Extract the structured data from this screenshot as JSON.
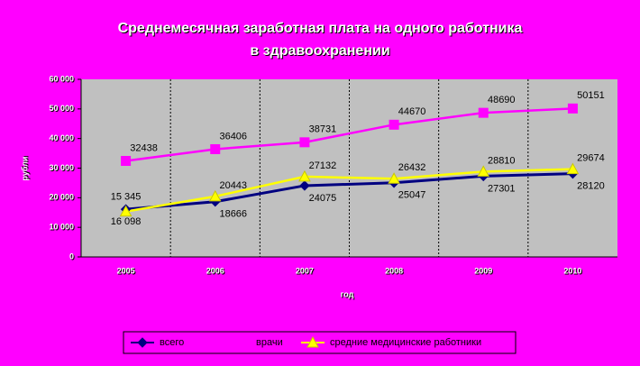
{
  "chart_data": {
    "type": "line",
    "title": [
      "Среднемесячная заработная плата на одного работника",
      "в здравоохранении"
    ],
    "x_label": "год",
    "y_label": "рубли",
    "categories": [
      "2005",
      "2006",
      "2007",
      "2008",
      "2009",
      "2010"
    ],
    "ylim": [
      0,
      60000
    ],
    "yticks": [
      0,
      {
        "value": 10000,
        "label": "10 000"
      },
      {
        "value": 20000,
        "label": "20 000"
      },
      {
        "value": 30000,
        "label": "30 000"
      },
      {
        "value": 40000,
        "label": "40 000"
      },
      {
        "value": 50000,
        "label": "50 000"
      },
      {
        "value": 60000,
        "label": "60 000"
      }
    ],
    "series": [
      {
        "name": "всего",
        "color": "#000080",
        "marker": "diamond",
        "values": [
          16098,
          18666,
          24075,
          25047,
          27301,
          28120
        ],
        "value_labels": [
          "16 098",
          "18666",
          "24075",
          "25047",
          "27301",
          "28120"
        ]
      },
      {
        "name": "врачи",
        "color": "#ff00ff",
        "marker": "square",
        "values": [
          32438,
          36406,
          38731,
          44670,
          48690,
          50151
        ]
      },
      {
        "name": "средние медицинские работники",
        "color": "#ffff00",
        "marker": "triangle",
        "values": [
          15345,
          20443,
          27132,
          26432,
          28810,
          29674
        ],
        "value_labels": [
          "15 345",
          "20443",
          "27132",
          "26432",
          "28810",
          "29674"
        ]
      }
    ]
  }
}
